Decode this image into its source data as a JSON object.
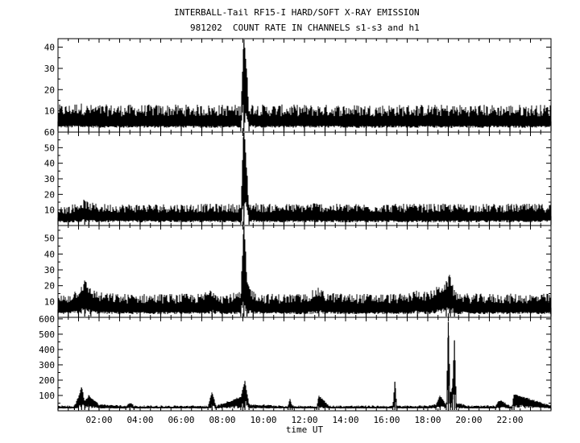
{
  "title_line_1": "INTERBALL-Tail RF15-I HARD/SOFT X-RAY EMISSION",
  "title_line_2": "981202  COUNT RATE IN CHANNELS s1-s3 and h1",
  "chart_data": {
    "type": "line",
    "title": "INTERBALL-Tail RF15-I HARD/SOFT X-RAY EMISSION",
    "subtitle": "981202  COUNT RATE IN CHANNELS s1-s3 and h1",
    "xlabel": "time UT",
    "x_unit": "hours UT",
    "xlim": [
      0,
      24
    ],
    "x_ticks": [
      2,
      4,
      6,
      8,
      10,
      12,
      14,
      16,
      18,
      20,
      22
    ],
    "x_tick_labels": [
      "02:00",
      "04:00",
      "06:00",
      "08:00",
      "10:00",
      "12:00",
      "14:00",
      "16:00",
      "18:00",
      "20:00",
      "22:00"
    ],
    "panels": [
      {
        "channel": "s1",
        "ylim": [
          0,
          44
        ],
        "y_ticks": [
          10,
          20,
          30,
          40
        ],
        "y_tick_labels": [
          "10",
          "20",
          "30",
          "40"
        ],
        "baseline_range": [
          2,
          10
        ],
        "x": [
          0,
          0.5,
          1,
          1.5,
          2,
          3,
          4,
          5,
          6,
          7,
          8,
          8.9,
          9.05,
          9.3,
          10,
          11,
          12,
          13,
          14,
          15,
          16,
          17,
          18,
          19,
          20,
          21,
          22,
          23,
          24
        ],
        "y": [
          5,
          5,
          6,
          5,
          5,
          5,
          5,
          5,
          5,
          5,
          5,
          5,
          42,
          6,
          5,
          5,
          5,
          5,
          5,
          5,
          5,
          5,
          5,
          5,
          5,
          5,
          5,
          5,
          5
        ]
      },
      {
        "channel": "s2",
        "ylim": [
          0,
          60
        ],
        "y_ticks": [
          10,
          20,
          30,
          40,
          50,
          60
        ],
        "y_tick_labels": [
          "10",
          "20",
          "30",
          "40",
          "50",
          "60"
        ],
        "baseline_range": [
          2,
          10
        ],
        "x": [
          0,
          0.5,
          1,
          1.3,
          1.5,
          2,
          3,
          4,
          5,
          6,
          7,
          8,
          8.9,
          9.05,
          9.3,
          10,
          11,
          12,
          12.5,
          13,
          14,
          15,
          16,
          17,
          18,
          19,
          20,
          21,
          22,
          23,
          24
        ],
        "y": [
          5,
          5,
          7,
          9,
          7,
          6,
          6,
          6,
          6,
          6,
          6,
          6,
          6,
          60,
          7,
          6,
          6,
          6,
          7,
          6,
          6,
          6,
          6,
          6,
          6,
          6,
          6,
          6,
          6,
          6,
          6
        ]
      },
      {
        "channel": "s3",
        "ylim": [
          0,
          58
        ],
        "y_ticks": [
          10,
          20,
          30,
          40,
          50
        ],
        "y_tick_labels": [
          "10",
          "20",
          "30",
          "40",
          "50"
        ],
        "baseline_range": [
          2,
          11
        ],
        "x": [
          0,
          0.5,
          1,
          1.3,
          1.6,
          2,
          3,
          4,
          5,
          6,
          7,
          7.5,
          8,
          8.9,
          9.05,
          9.2,
          9.5,
          10,
          11,
          12,
          12.7,
          13,
          14,
          15,
          16,
          17,
          17.5,
          18,
          18.9,
          19.1,
          19.3,
          20,
          21,
          22,
          23,
          24
        ],
        "y": [
          5,
          6,
          10,
          15,
          10,
          7,
          6,
          6,
          6,
          6,
          6,
          10,
          6,
          7,
          57,
          15,
          8,
          6,
          6,
          6,
          10,
          7,
          6,
          6,
          6,
          6,
          9,
          7,
          14,
          19,
          8,
          6,
          6,
          6,
          6,
          6
        ]
      },
      {
        "channel": "h1",
        "ylim": [
          0,
          610
        ],
        "y_ticks": [
          100,
          200,
          300,
          400,
          500,
          600
        ],
        "y_tick_labels": [
          "100",
          "200",
          "300",
          "400",
          "500",
          "600"
        ],
        "baseline_range": [
          15,
          30
        ],
        "x": [
          0,
          0.8,
          1.0,
          1.15,
          1.3,
          1.5,
          2,
          3.3,
          3.5,
          3.7,
          5,
          7.3,
          7.5,
          7.7,
          8.9,
          9.1,
          9.3,
          11.2,
          11.3,
          11.4,
          12.6,
          12.7,
          13.2,
          16.3,
          16.4,
          16.5,
          17.8,
          18.4,
          18.6,
          18.9,
          19.0,
          19.1,
          19.2,
          19.3,
          19.4,
          20,
          21.3,
          21.5,
          22,
          22.1,
          22.2,
          24
        ],
        "y": [
          20,
          20,
          80,
          150,
          50,
          90,
          30,
          20,
          45,
          20,
          20,
          20,
          110,
          20,
          80,
          190,
          30,
          20,
          70,
          20,
          20,
          90,
          20,
          20,
          190,
          20,
          20,
          30,
          90,
          30,
          580,
          100,
          150,
          460,
          40,
          20,
          20,
          60,
          20,
          20,
          100,
          20
        ]
      }
    ]
  }
}
